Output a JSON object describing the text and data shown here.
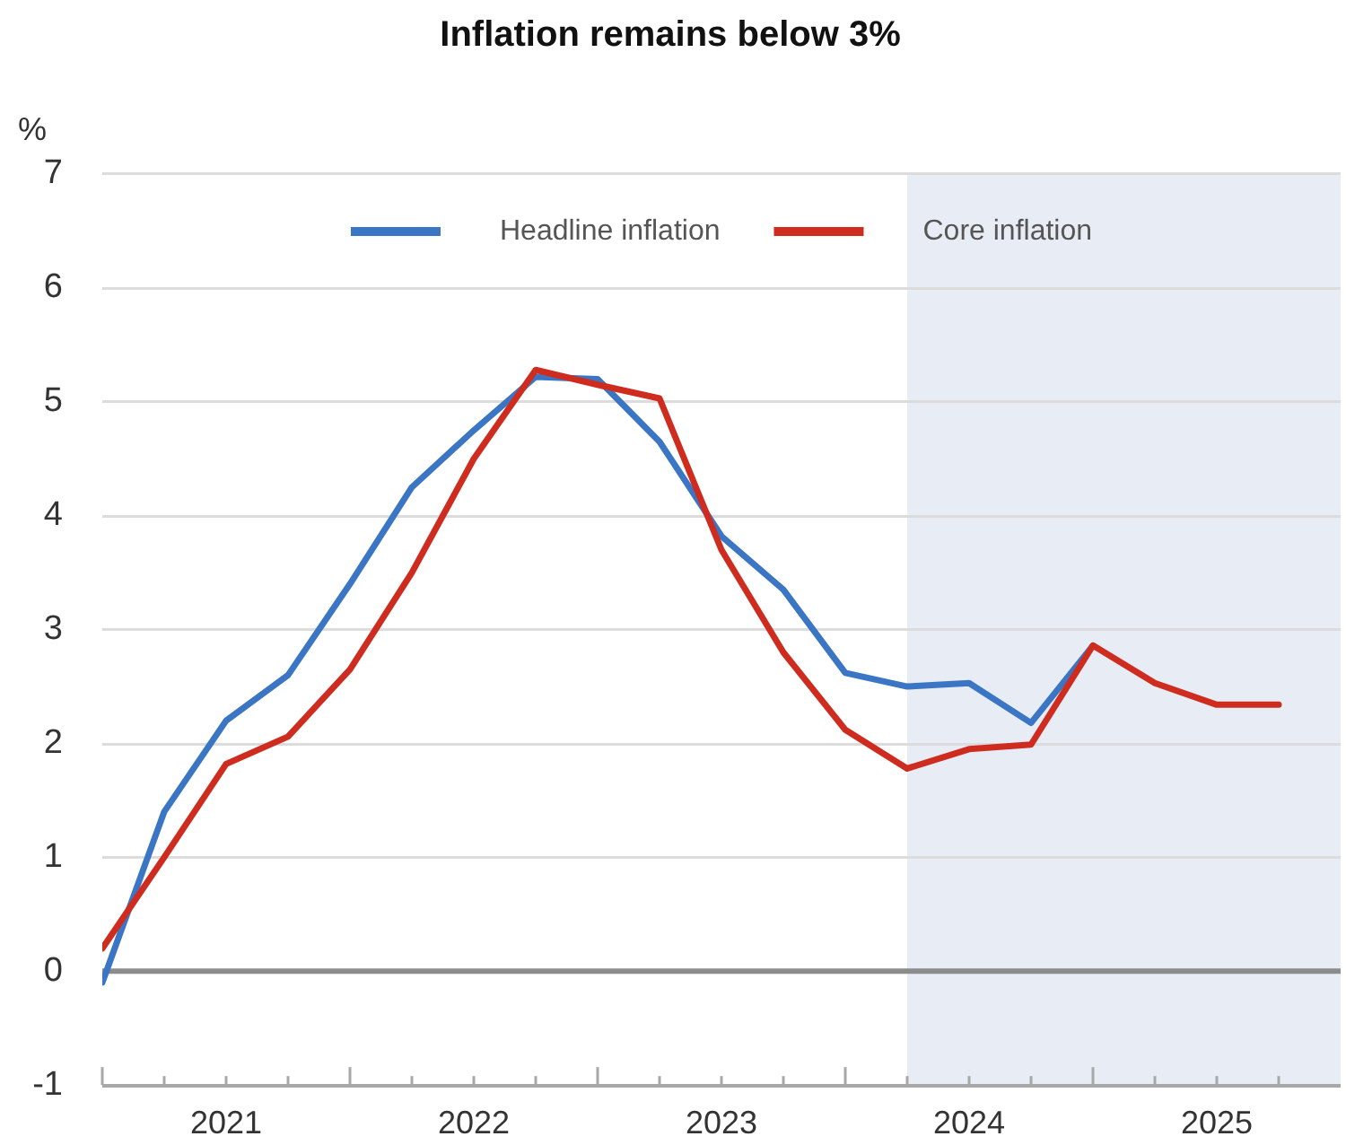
{
  "chart_data": {
    "type": "line",
    "title": "Inflation remains below 3%",
    "ylabel": "%",
    "x": [
      "2021-01",
      "2021-04",
      "2021-07",
      "2021-10",
      "2022-01",
      "2022-04",
      "2022-07",
      "2022-10",
      "2023-01",
      "2023-04",
      "2023-07",
      "2023-10",
      "2024-01",
      "2024-04",
      "2024-07",
      "2024-10",
      "2025-01",
      "2025-04",
      "2025-07",
      "2025-10"
    ],
    "series": [
      {
        "name": "Headline inflation",
        "color": "#3b76c5",
        "values": [
          -0.1,
          1.4,
          2.2,
          2.6,
          3.4,
          4.25,
          4.75,
          5.22,
          5.2,
          4.65,
          3.82,
          3.35,
          2.62,
          2.5,
          2.53,
          2.18,
          2.86,
          null,
          null,
          null
        ]
      },
      {
        "name": "Core inflation",
        "color": "#cf2c20",
        "values": [
          0.2,
          1.0,
          1.82,
          2.06,
          2.65,
          3.5,
          4.5,
          5.28,
          5.15,
          5.03,
          3.7,
          2.8,
          2.12,
          1.78,
          1.95,
          1.99,
          2.86,
          2.53,
          2.34,
          2.34
        ]
      }
    ],
    "xlim": [
      "2021-01",
      "2026-01"
    ],
    "xticks": [
      {
        "value": "2021-01",
        "label": null
      },
      {
        "value": "2021-04",
        "label": null
      },
      {
        "value": "2021-07",
        "label": "2021"
      },
      {
        "value": "2021-10",
        "label": null
      },
      {
        "value": "2022-01",
        "label": null
      },
      {
        "value": "2022-04",
        "label": null
      },
      {
        "value": "2022-07",
        "label": "2022"
      },
      {
        "value": "2022-10",
        "label": null
      },
      {
        "value": "2023-01",
        "label": null
      },
      {
        "value": "2023-04",
        "label": null
      },
      {
        "value": "2023-07",
        "label": "2023"
      },
      {
        "value": "2023-10",
        "label": null
      },
      {
        "value": "2024-01",
        "label": null
      },
      {
        "value": "2024-04",
        "label": null
      },
      {
        "value": "2024-07",
        "label": "2024"
      },
      {
        "value": "2024-10",
        "label": null
      },
      {
        "value": "2025-01",
        "label": null
      },
      {
        "value": "2025-04",
        "label": null
      },
      {
        "value": "2025-07",
        "label": "2025"
      },
      {
        "value": "2025-10",
        "label": null
      }
    ],
    "ylim": [
      -1,
      7
    ],
    "yticks": [
      -1,
      0,
      1,
      2,
      3,
      4,
      5,
      6,
      7
    ],
    "grid": "y",
    "legend": "top",
    "bands": [
      {
        "axis": "x",
        "from": "2024-04",
        "to": "2026-01",
        "color": "#e8ecf5"
      }
    ],
    "ref_lines": [
      {
        "axis": "y",
        "value": 0,
        "color": "#8c8c8c"
      }
    ]
  }
}
